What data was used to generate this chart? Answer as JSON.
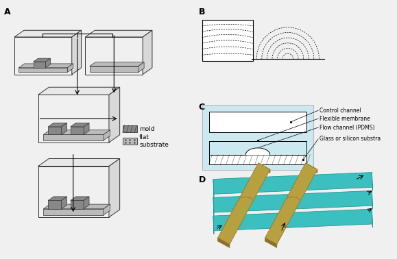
{
  "bg_color": "#f0f0f0",
  "white": "#ffffff",
  "panel_A_label": "A",
  "panel_B_label": "B",
  "panel_C_label": "C",
  "panel_D_label": "D",
  "legend_mold": "mold",
  "legend_flat": "flat\nsubstrate",
  "c_labels": [
    "Control channel",
    "Flexible membrane",
    "Flow channel (PDMS)",
    "Glass or silicon substra"
  ],
  "teal_color": "#3bbfbf",
  "gold_color": "#b8a040",
  "light_blue": "#cce8f0",
  "gray_mold": "#888888",
  "gray_flat": "#bbbbbb",
  "dark_line": "#222222"
}
